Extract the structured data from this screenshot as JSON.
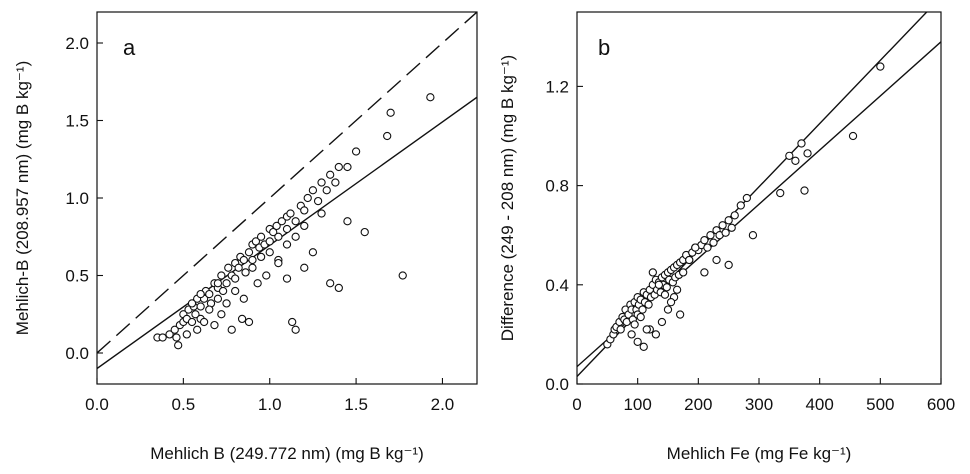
{
  "chart_data": [
    {
      "type": "scatter",
      "panel_label": "a",
      "xlabel": "Mehlich B (249.772 nm) (mg B kg⁻¹)",
      "ylabel": "Mehlich-B (208.957 nm) (mg B kg⁻¹)",
      "xlim": [
        0.0,
        2.2
      ],
      "ylim": [
        -0.2,
        2.2
      ],
      "xticks": [
        "0.0",
        "0.5",
        "1.0",
        "1.5",
        "2.0"
      ],
      "yticks": [
        "0.0",
        "0.5",
        "1.0",
        "1.5",
        "2.0"
      ],
      "grid": false,
      "lines": [
        {
          "style": "dashed",
          "x": [
            0.0,
            2.2
          ],
          "y": [
            0.0,
            2.2
          ]
        },
        {
          "style": "solid",
          "x": [
            0.0,
            2.2
          ],
          "y": [
            -0.1,
            1.65
          ]
        }
      ],
      "points": {
        "x": [
          0.35,
          0.38,
          0.42,
          0.45,
          0.46,
          0.48,
          0.5,
          0.5,
          0.52,
          0.53,
          0.55,
          0.56,
          0.57,
          0.58,
          0.6,
          0.6,
          0.62,
          0.63,
          0.65,
          0.66,
          0.68,
          0.7,
          0.7,
          0.72,
          0.73,
          0.75,
          0.76,
          0.78,
          0.8,
          0.8,
          0.82,
          0.83,
          0.85,
          0.86,
          0.88,
          0.9,
          0.9,
          0.92,
          0.94,
          0.95,
          0.97,
          1.0,
          1.0,
          1.02,
          1.04,
          1.05,
          1.07,
          1.1,
          1.1,
          1.12,
          1.15,
          1.18,
          1.2,
          1.22,
          1.25,
          1.28,
          1.3,
          1.33,
          1.35,
          1.38,
          1.4,
          1.45,
          1.5,
          1.68,
          1.7,
          1.93,
          0.47,
          0.52,
          0.58,
          0.62,
          0.68,
          0.72,
          0.78,
          0.84,
          0.88,
          0.93,
          0.98,
          1.05,
          1.1,
          1.13,
          1.15,
          1.2,
          1.25,
          1.35,
          1.4,
          1.45,
          1.55,
          1.77,
          0.55,
          0.6,
          0.65,
          0.7,
          0.75,
          0.8,
          0.85,
          0.9,
          0.95,
          1.0,
          1.05,
          1.1,
          1.15,
          1.2,
          1.3
        ],
        "y": [
          0.1,
          0.1,
          0.12,
          0.15,
          0.1,
          0.18,
          0.2,
          0.25,
          0.22,
          0.28,
          0.2,
          0.3,
          0.25,
          0.35,
          0.3,
          0.22,
          0.35,
          0.4,
          0.38,
          0.32,
          0.45,
          0.42,
          0.35,
          0.5,
          0.4,
          0.45,
          0.55,
          0.5,
          0.48,
          0.58,
          0.55,
          0.62,
          0.6,
          0.52,
          0.65,
          0.7,
          0.6,
          0.72,
          0.68,
          0.75,
          0.7,
          0.8,
          0.72,
          0.78,
          0.82,
          0.75,
          0.85,
          0.88,
          0.8,
          0.9,
          0.85,
          0.95,
          0.92,
          1.0,
          1.05,
          0.98,
          1.1,
          1.05,
          1.15,
          1.1,
          1.2,
          1.2,
          1.3,
          1.4,
          1.55,
          1.65,
          0.05,
          0.12,
          0.15,
          0.2,
          0.18,
          0.25,
          0.15,
          0.22,
          0.2,
          0.45,
          0.5,
          0.6,
          0.48,
          0.2,
          0.15,
          0.55,
          0.65,
          0.45,
          0.42,
          0.85,
          0.78,
          0.5,
          0.32,
          0.38,
          0.28,
          0.45,
          0.32,
          0.4,
          0.35,
          0.55,
          0.62,
          0.65,
          0.58,
          0.7,
          0.75,
          0.82,
          0.9
        ]
      }
    },
    {
      "type": "scatter",
      "panel_label": "b",
      "xlabel": "Mehlich Fe (mg Fe kg⁻¹)",
      "ylabel": "Difference (249 - 208 nm) (mg B kg⁻¹)",
      "xlim": [
        0,
        600
      ],
      "ylim": [
        0.0,
        1.5
      ],
      "xticks": [
        "0",
        "100",
        "200",
        "300",
        "400",
        "500",
        "600"
      ],
      "yticks": [
        "0.0",
        "0.4",
        "0.8",
        "1.2"
      ],
      "grid": false,
      "lines": [
        {
          "style": "solid",
          "x": [
            0,
            600
          ],
          "y": [
            0.07,
            1.38
          ]
        },
        {
          "style": "solid",
          "x": [
            0,
            600
          ],
          "y": [
            0.03,
            1.56
          ]
        }
      ],
      "points": {
        "x": [
          50,
          55,
          60,
          62,
          65,
          70,
          72,
          75,
          78,
          80,
          82,
          85,
          88,
          90,
          92,
          95,
          98,
          100,
          100,
          102,
          105,
          108,
          110,
          112,
          115,
          118,
          120,
          122,
          125,
          128,
          130,
          132,
          135,
          138,
          140,
          142,
          145,
          148,
          150,
          152,
          155,
          158,
          160,
          162,
          165,
          168,
          170,
          175,
          180,
          185,
          190,
          195,
          200,
          205,
          210,
          215,
          220,
          225,
          230,
          235,
          240,
          245,
          250,
          255,
          260,
          270,
          280,
          290,
          335,
          350,
          360,
          370,
          375,
          380,
          455,
          500,
          90,
          100,
          110,
          120,
          130,
          140,
          150,
          160,
          170,
          95,
          105,
          115,
          125,
          135,
          145,
          155,
          165,
          175,
          185,
          195,
          210,
          230,
          250
        ],
        "y": [
          0.16,
          0.18,
          0.2,
          0.22,
          0.23,
          0.25,
          0.22,
          0.27,
          0.26,
          0.3,
          0.25,
          0.28,
          0.32,
          0.3,
          0.26,
          0.33,
          0.3,
          0.35,
          0.28,
          0.32,
          0.34,
          0.3,
          0.37,
          0.33,
          0.36,
          0.32,
          0.38,
          0.35,
          0.4,
          0.36,
          0.42,
          0.38,
          0.41,
          0.37,
          0.43,
          0.4,
          0.44,
          0.39,
          0.45,
          0.42,
          0.46,
          0.41,
          0.47,
          0.43,
          0.48,
          0.44,
          0.49,
          0.5,
          0.52,
          0.5,
          0.53,
          0.55,
          0.54,
          0.56,
          0.58,
          0.55,
          0.6,
          0.57,
          0.62,
          0.6,
          0.64,
          0.61,
          0.66,
          0.63,
          0.68,
          0.72,
          0.75,
          0.6,
          0.77,
          0.92,
          0.9,
          0.97,
          0.78,
          0.93,
          1.0,
          1.28,
          0.2,
          0.17,
          0.15,
          0.22,
          0.2,
          0.25,
          0.3,
          0.35,
          0.28,
          0.24,
          0.27,
          0.22,
          0.45,
          0.4,
          0.36,
          0.33,
          0.38,
          0.45,
          0.5,
          0.55,
          0.45,
          0.5,
          0.48
        ]
      }
    }
  ]
}
